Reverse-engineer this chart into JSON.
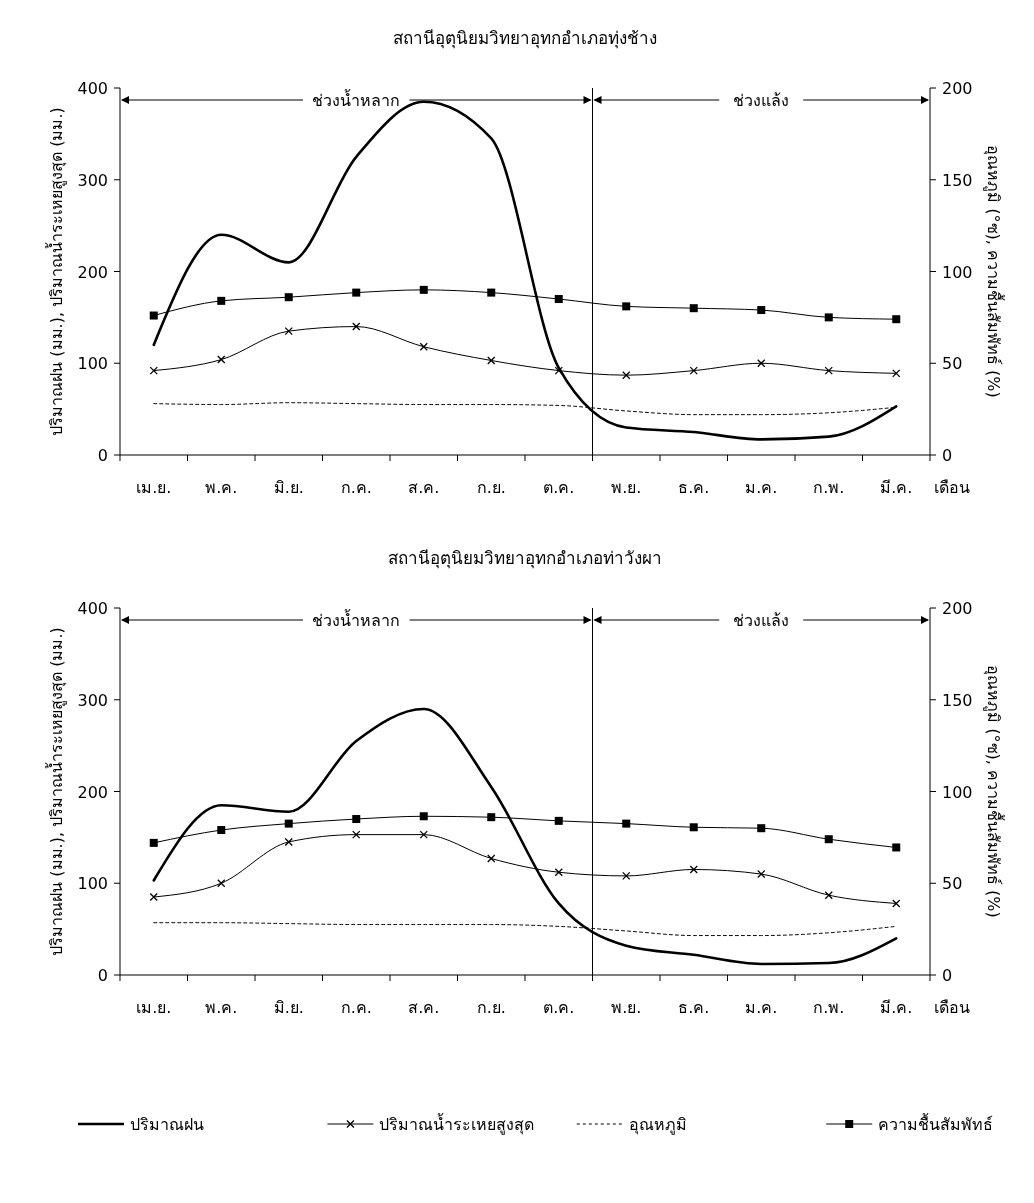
{
  "chart_data": [
    {
      "type": "line",
      "title": "สถานีอุตุนิยมวิทยาอุทกอำเภอทุ่งช้าง",
      "xlabel": "เดือน",
      "ylabel": "ปริมาณฝน (มม.), ปริมาณน้ำระเหยสูงสุด (มม.)",
      "y2label": "อุณหภูมิ (°ซ), ความชื้นสัมพัทธ์ (%)",
      "categories": [
        "เม.ย.",
        "พ.ค.",
        "มิ.ย.",
        "ก.ค.",
        "ส.ค.",
        "ก.ย.",
        "ต.ค.",
        "พ.ย.",
        "ธ.ค.",
        "ม.ค.",
        "ก.พ.",
        "มี.ค."
      ],
      "series": [
        {
          "color": "#000000",
          "marker": "none",
          "line_style": "solid",
          "values": [
            120,
            240,
            210,
            325,
            385,
            345,
            95,
            30,
            25,
            17,
            20,
            53
          ]
        },
        {
          "color": "#000000",
          "marker": "cross",
          "line_style": "solid",
          "values": [
            92,
            104,
            135,
            140,
            118,
            103,
            92,
            87,
            92,
            100,
            92,
            89
          ]
        },
        {
          "color": "#000000",
          "marker": "none",
          "line_style": "dashed",
          "axis": "y2",
          "values": [
            28,
            27.5,
            28.5,
            28,
            27.5,
            27.5,
            27,
            24,
            22,
            22,
            23,
            26
          ]
        },
        {
          "color": "#000000",
          "marker": "square",
          "line_style": "solid",
          "axis": "y2",
          "values": [
            76,
            84,
            86,
            88.5,
            90,
            88.5,
            85,
            81,
            80,
            79,
            75,
            74
          ]
        }
      ],
      "ylim": [
        0,
        400
      ],
      "yticks": [
        0,
        100,
        200,
        300,
        400
      ],
      "y2lim": [
        0,
        200
      ],
      "y2ticks": [
        0,
        50,
        100,
        150,
        200
      ],
      "annotations": [
        "ช่วงน้ำหลาก",
        "ช่วงแล้ง"
      ],
      "grid": false,
      "legend": false
    },
    {
      "type": "line",
      "title": "สถานีอุตุนิยมวิทยาอุทกอำเภอท่าวังผา",
      "xlabel": "เดือน",
      "ylabel": "ปริมาณฝน (มม.), ปริมาณน้ำระเหยสูงสุด (มม.)",
      "y2label": "อุณหภูมิ (°ซ), ความชื้นสัมพัทธ์ (%)",
      "categories": [
        "เม.ย.",
        "พ.ค.",
        "มิ.ย.",
        "ก.ค.",
        "ส.ค.",
        "ก.ย.",
        "ต.ค.",
        "พ.ย.",
        "ธ.ค.",
        "ม.ค.",
        "ก.พ.",
        "มี.ค."
      ],
      "series": [
        {
          "name": "ปริมาณฝน",
          "color": "#000000",
          "marker": "none",
          "line_style": "solid",
          "values": [
            103,
            185,
            178,
            255,
            290,
            205,
            78,
            32,
            22,
            12,
            13,
            40
          ]
        },
        {
          "name": "ปริมาณน้ำระเหยสูงสุด",
          "color": "#000000",
          "marker": "cross",
          "line_style": "solid",
          "values": [
            85,
            100,
            145,
            153,
            153,
            127,
            112,
            108,
            115,
            110,
            87,
            78
          ]
        },
        {
          "name": "อุณหภูมิ",
          "color": "#000000",
          "marker": "none",
          "line_style": "dashed",
          "axis": "y2",
          "values": [
            28.5,
            28.5,
            28,
            27.5,
            27.5,
            27.5,
            26.5,
            24,
            21.5,
            21.5,
            23,
            26.5
          ]
        },
        {
          "name": "ความชื้นสัมพัทธ์",
          "color": "#000000",
          "marker": "square",
          "line_style": "solid",
          "axis": "y2",
          "values": [
            72,
            79,
            82.5,
            85,
            86.5,
            86,
            84,
            82.5,
            80.5,
            80,
            74,
            69.5
          ]
        }
      ],
      "ylim": [
        0,
        400
      ],
      "yticks": [
        0,
        100,
        200,
        300,
        400
      ],
      "y2lim": [
        0,
        200
      ],
      "y2ticks": [
        0,
        50,
        100,
        150,
        200
      ],
      "annotations": [
        "ช่วงน้ำหลาก",
        "ช่วงแล้ง"
      ],
      "grid": false,
      "legend": "bottom"
    }
  ]
}
